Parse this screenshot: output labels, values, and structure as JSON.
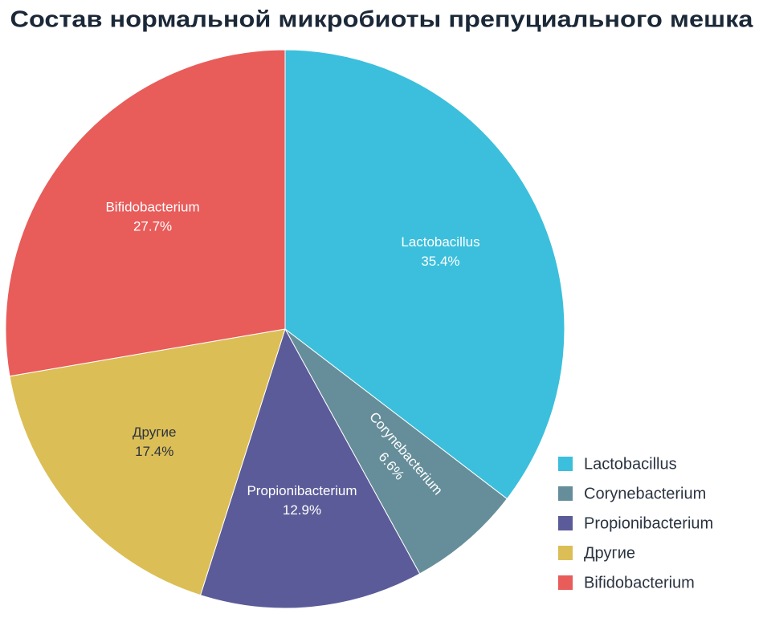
{
  "chart_data": {
    "type": "pie",
    "title": "Состав нормальной микробиоты препуциального мешка",
    "categories": [
      "Lactobacillus",
      "Corynebacterium",
      "Propionibacterium",
      "Другие",
      "Bifidobacterium"
    ],
    "values": [
      35.4,
      6.6,
      12.9,
      17.4,
      27.7
    ],
    "value_labels": [
      "35.4%",
      "6.6%",
      "12.9%",
      "17.4%",
      "27.7%"
    ],
    "colors": [
      "#3bbfdc",
      "#668e9a",
      "#5b5b99",
      "#dcbe56",
      "#e85c5a"
    ],
    "legend": "bottom-right"
  }
}
